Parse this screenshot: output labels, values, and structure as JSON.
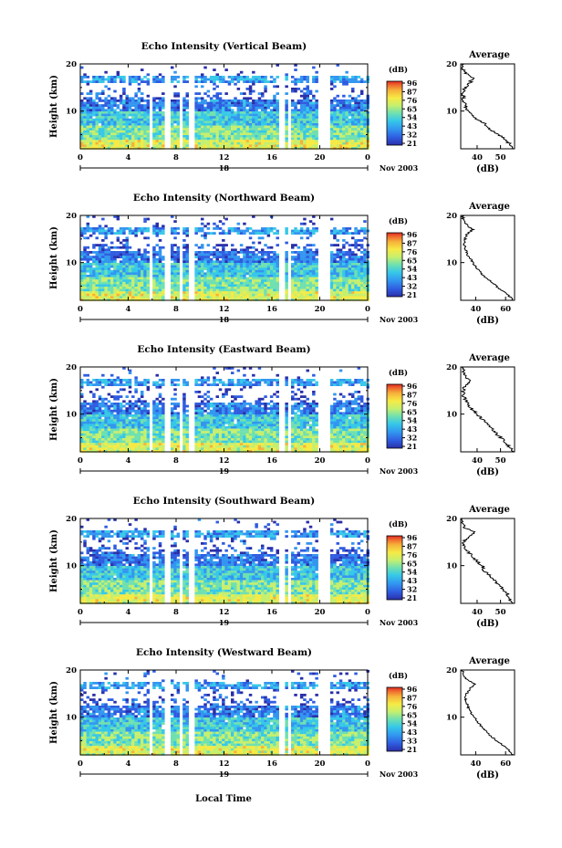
{
  "xlabel_bottom": "Local Time",
  "colorbar": {
    "unit": "(dB)",
    "colors": [
      "#2a2fa8",
      "#2f5ce0",
      "#3296f0",
      "#36c8e8",
      "#6fe0b0",
      "#c6ef6e",
      "#f6ea45",
      "#f6b13a",
      "#ef6a2e",
      "#df2a22"
    ]
  },
  "profile_ylabel": "(dB)",
  "chart_data": [
    {
      "type": "heatmap",
      "title": "Echo Intensity (Vertical Beam)",
      "ylabel": "Height (km)",
      "xlim": [
        0,
        24
      ],
      "ylim": [
        2,
        20
      ],
      "x_ticks": [
        "0",
        "4",
        "8",
        "12",
        "16",
        "20",
        "0"
      ],
      "y_ticks": [
        "20",
        "10"
      ],
      "date_day": "18",
      "date_month": "Nov 2003",
      "gaps_hours": [
        [
          5.6,
          6.0
        ],
        [
          7.0,
          7.4
        ],
        [
          8.1,
          8.5
        ],
        [
          9.0,
          9.5
        ],
        [
          16.5,
          16.9
        ],
        [
          17.3,
          17.6
        ],
        [
          19.8,
          20.8
        ]
      ],
      "colorbar_ticks": [
        "96",
        "87",
        "76",
        "65",
        "54",
        "43",
        "32",
        "21"
      ],
      "profile": {
        "title": "Average",
        "xlabel": "(dB)",
        "x_ticks": [
          "40",
          "50"
        ],
        "xlim": [
          33,
          56
        ],
        "y_ticks": [
          "20",
          "10"
        ],
        "heights": [
          2,
          3,
          4,
          5,
          6,
          7,
          8,
          9,
          10,
          11,
          12,
          13,
          14,
          15,
          16,
          17,
          18,
          19,
          20
        ],
        "values": [
          55,
          54,
          52,
          49,
          46,
          44,
          41,
          38,
          36,
          35,
          34.5,
          34,
          34,
          35,
          37,
          38,
          35,
          34,
          34
        ]
      }
    },
    {
      "type": "heatmap",
      "title": "Echo Intensity (Northward Beam)",
      "ylabel": "Height (km)",
      "xlim": [
        0,
        24
      ],
      "ylim": [
        2,
        20
      ],
      "x_ticks": [
        "0",
        "4",
        "8",
        "12",
        "16",
        "20",
        "0"
      ],
      "y_ticks": [
        "20",
        "10"
      ],
      "date_day": "18",
      "date_month": "Nov 2003",
      "gaps_hours": [
        [
          5.6,
          6.0
        ],
        [
          7.0,
          7.4
        ],
        [
          8.1,
          8.5
        ],
        [
          9.0,
          9.5
        ],
        [
          16.5,
          16.9
        ],
        [
          17.3,
          17.6
        ],
        [
          19.8,
          20.8
        ]
      ],
      "colorbar_ticks": [
        "96",
        "87",
        "76",
        "65",
        "54",
        "43",
        "32",
        "21"
      ],
      "profile": {
        "title": "Average",
        "xlabel": "(dB)",
        "x_ticks": [
          "40",
          "60"
        ],
        "xlim": [
          30,
          66
        ],
        "y_ticks": [
          "20",
          "10"
        ],
        "heights": [
          2,
          3,
          4,
          5,
          6,
          7,
          8,
          9,
          10,
          11,
          12,
          13,
          14,
          15,
          16,
          17,
          18,
          19,
          20
        ],
        "values": [
          65,
          62,
          58,
          54,
          50,
          46,
          43,
          40,
          38,
          36,
          34,
          33,
          32,
          33,
          34,
          38,
          34,
          32,
          31
        ]
      }
    },
    {
      "type": "heatmap",
      "title": "Echo Intensity (Eastward Beam)",
      "ylabel": "Height (km)",
      "xlim": [
        0,
        24
      ],
      "ylim": [
        2,
        20
      ],
      "x_ticks": [
        "0",
        "4",
        "8",
        "12",
        "16",
        "20",
        "0"
      ],
      "y_ticks": [
        "20",
        "10"
      ],
      "date_day": "19",
      "date_month": "Nov 2003",
      "gaps_hours": [
        [
          5.6,
          6.0
        ],
        [
          7.0,
          7.4
        ],
        [
          8.1,
          8.5
        ],
        [
          9.0,
          9.5
        ],
        [
          16.5,
          16.9
        ],
        [
          17.3,
          17.6
        ],
        [
          19.8,
          20.8
        ]
      ],
      "colorbar_ticks": [
        "96",
        "87",
        "76",
        "65",
        "54",
        "43",
        "32",
        "21"
      ],
      "profile": {
        "title": "Average",
        "xlabel": "(dB)",
        "x_ticks": [
          "40",
          "50"
        ],
        "xlim": [
          33,
          56
        ],
        "y_ticks": [
          "20",
          "10"
        ],
        "heights": [
          2,
          3,
          4,
          5,
          6,
          7,
          8,
          9,
          10,
          11,
          12,
          13,
          14,
          15,
          16,
          17,
          18,
          19,
          20
        ],
        "values": [
          55,
          54,
          52,
          50,
          48,
          46,
          44,
          42,
          40,
          38,
          36,
          35,
          34,
          34,
          35,
          37,
          35,
          34,
          34
        ]
      }
    },
    {
      "type": "heatmap",
      "title": "Echo Intensity (Southward Beam)",
      "ylabel": "Height (km)",
      "xlim": [
        0,
        24
      ],
      "ylim": [
        2,
        20
      ],
      "x_ticks": [
        "0",
        "4",
        "8",
        "12",
        "16",
        "20",
        "0"
      ],
      "y_ticks": [
        "20",
        "10"
      ],
      "date_day": "19",
      "date_month": "Nov 2003",
      "gaps_hours": [
        [
          5.6,
          6.0
        ],
        [
          7.0,
          7.4
        ],
        [
          8.1,
          8.5
        ],
        [
          9.0,
          9.5
        ],
        [
          16.5,
          16.9
        ],
        [
          17.3,
          17.6
        ],
        [
          19.8,
          20.8
        ]
      ],
      "colorbar_ticks": [
        "96",
        "87",
        "76",
        "65",
        "54",
        "43",
        "32",
        "21"
      ],
      "profile": {
        "title": "Average",
        "xlabel": "(dB)",
        "x_ticks": [
          "40",
          "50"
        ],
        "xlim": [
          33,
          56
        ],
        "y_ticks": [
          "20",
          "10"
        ],
        "heights": [
          2,
          3,
          4,
          5,
          6,
          7,
          8,
          9,
          10,
          11,
          12,
          13,
          14,
          15,
          16,
          17,
          18,
          19,
          20
        ],
        "values": [
          55,
          54,
          53,
          51,
          49,
          47,
          45,
          43,
          42,
          40,
          38,
          36,
          35,
          34,
          36,
          39,
          35,
          34,
          34
        ]
      }
    },
    {
      "type": "heatmap",
      "title": "Echo Intensity (Westward Beam)",
      "ylabel": "Height (km)",
      "xlim": [
        0,
        24
      ],
      "ylim": [
        2,
        20
      ],
      "x_ticks": [
        "0",
        "4",
        "8",
        "12",
        "16",
        "20",
        "0"
      ],
      "y_ticks": [
        "20",
        "10"
      ],
      "date_day": "19",
      "date_month": "Nov 2003",
      "gaps_hours": [
        [
          5.6,
          6.0
        ],
        [
          7.0,
          7.4
        ],
        [
          8.1,
          8.5
        ],
        [
          9.0,
          9.5
        ],
        [
          16.5,
          16.9
        ],
        [
          17.3,
          17.6
        ],
        [
          19.8,
          20.8
        ]
      ],
      "colorbar_ticks": [
        "96",
        "87",
        "76",
        "65",
        "54",
        "43",
        "33",
        "21"
      ],
      "profile": {
        "title": "Average",
        "xlabel": "(dB)",
        "x_ticks": [
          "40",
          "60"
        ],
        "xlim": [
          30,
          66
        ],
        "y_ticks": [
          "20",
          "10"
        ],
        "heights": [
          2,
          3,
          4,
          5,
          6,
          7,
          8,
          9,
          10,
          11,
          12,
          13,
          14,
          15,
          16,
          17,
          18,
          19,
          20
        ],
        "values": [
          65,
          62,
          58,
          54,
          50,
          47,
          44,
          41,
          39,
          37,
          35,
          34,
          33,
          34,
          36,
          40,
          34,
          32,
          31
        ]
      }
    }
  ]
}
